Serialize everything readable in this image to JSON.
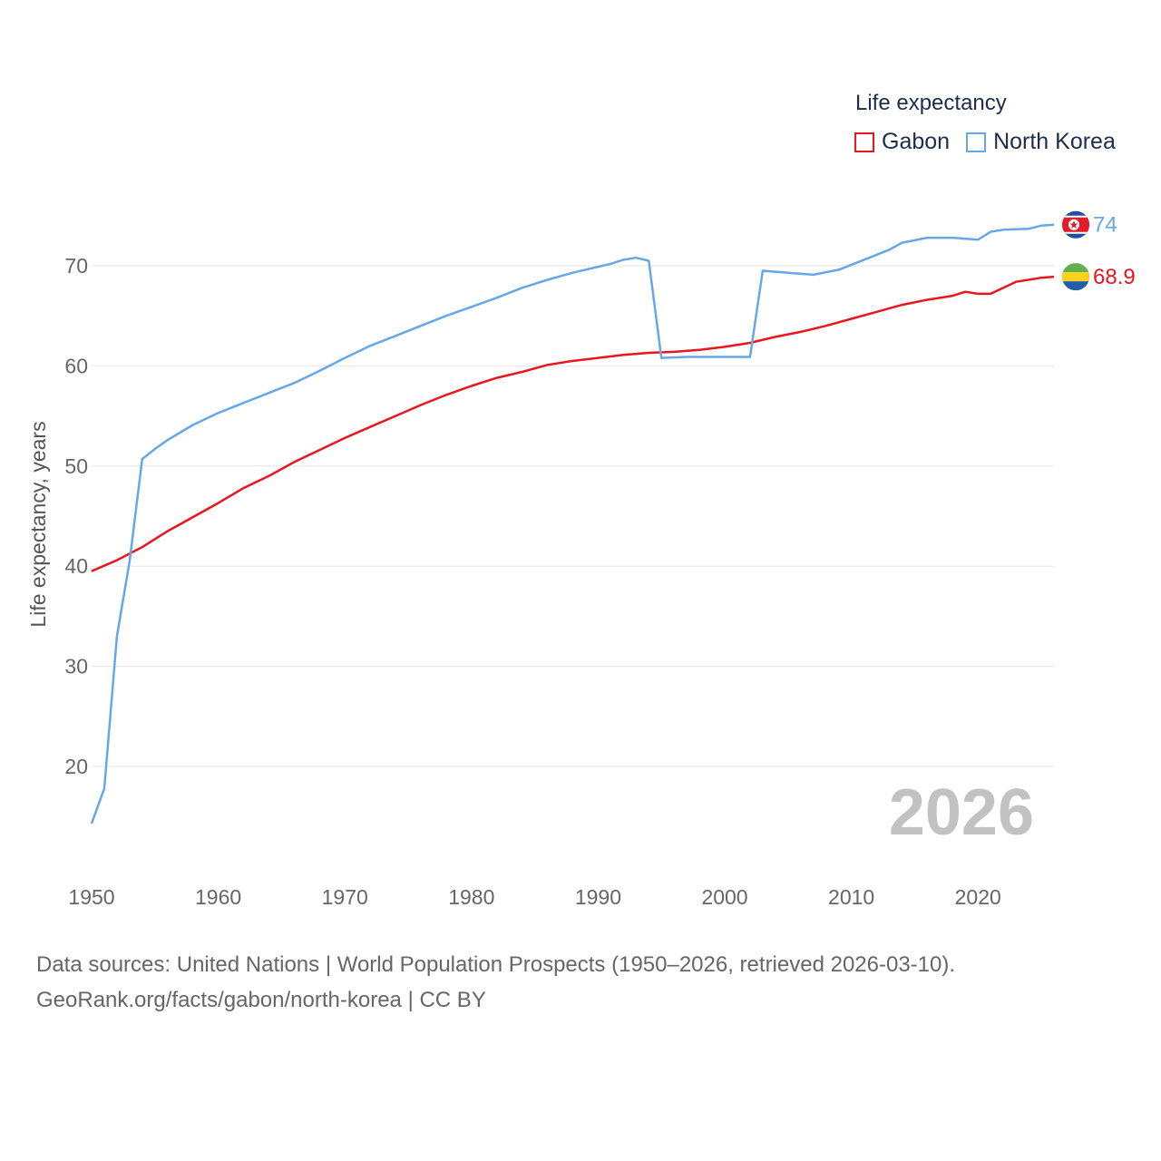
{
  "chart_data": {
    "type": "line",
    "title": "Life expectancy",
    "xlabel": "",
    "ylabel": "Life expectancy, years",
    "xlim": [
      1950,
      2026
    ],
    "ylim": [
      12,
      76
    ],
    "yticks": [
      20,
      30,
      40,
      50,
      60,
      70
    ],
    "xticks": [
      1950,
      1960,
      1970,
      1980,
      1990,
      2000,
      2010,
      2020
    ],
    "year_watermark": "2026",
    "grid": true,
    "legend_position": "top-right",
    "series": [
      {
        "name": "Gabon",
        "color": "#e8161e",
        "end_label": "68.9",
        "flag": "gabon-flag",
        "points": [
          [
            1950,
            39.5
          ],
          [
            1952,
            40.6
          ],
          [
            1954,
            41.9
          ],
          [
            1956,
            43.5
          ],
          [
            1958,
            44.9
          ],
          [
            1960,
            46.3
          ],
          [
            1962,
            47.8
          ],
          [
            1964,
            49.0
          ],
          [
            1966,
            50.4
          ],
          [
            1968,
            51.6
          ],
          [
            1970,
            52.8
          ],
          [
            1972,
            53.9
          ],
          [
            1974,
            55.0
          ],
          [
            1976,
            56.1
          ],
          [
            1978,
            57.1
          ],
          [
            1980,
            58.0
          ],
          [
            1982,
            58.8
          ],
          [
            1984,
            59.4
          ],
          [
            1986,
            60.1
          ],
          [
            1988,
            60.5
          ],
          [
            1990,
            60.8
          ],
          [
            1992,
            61.1
          ],
          [
            1994,
            61.3
          ],
          [
            1996,
            61.4
          ],
          [
            1998,
            61.6
          ],
          [
            2000,
            61.9
          ],
          [
            2002,
            62.3
          ],
          [
            2004,
            62.9
          ],
          [
            2006,
            63.4
          ],
          [
            2008,
            64.0
          ],
          [
            2010,
            64.7
          ],
          [
            2012,
            65.4
          ],
          [
            2014,
            66.1
          ],
          [
            2016,
            66.6
          ],
          [
            2018,
            67.0
          ],
          [
            2019,
            67.4
          ],
          [
            2020,
            67.2
          ],
          [
            2021,
            67.2
          ],
          [
            2023,
            68.4
          ],
          [
            2025,
            68.8
          ],
          [
            2026,
            68.9
          ]
        ]
      },
      {
        "name": "North Korea",
        "color": "#66a8e6",
        "end_label": "74",
        "flag": "north-korea-flag",
        "points": [
          [
            1950,
            14.3
          ],
          [
            1951,
            17.8
          ],
          [
            1952,
            33.0
          ],
          [
            1953,
            40.5
          ],
          [
            1954,
            50.7
          ],
          [
            1955,
            51.7
          ],
          [
            1956,
            52.6
          ],
          [
            1958,
            54.1
          ],
          [
            1960,
            55.3
          ],
          [
            1962,
            56.3
          ],
          [
            1964,
            57.3
          ],
          [
            1966,
            58.3
          ],
          [
            1968,
            59.5
          ],
          [
            1970,
            60.8
          ],
          [
            1972,
            62.0
          ],
          [
            1974,
            63.0
          ],
          [
            1976,
            64.0
          ],
          [
            1978,
            65.0
          ],
          [
            1980,
            65.9
          ],
          [
            1982,
            66.8
          ],
          [
            1984,
            67.8
          ],
          [
            1986,
            68.6
          ],
          [
            1988,
            69.3
          ],
          [
            1990,
            69.9
          ],
          [
            1991,
            70.2
          ],
          [
            1992,
            70.6
          ],
          [
            1993,
            70.8
          ],
          [
            1994,
            70.5
          ],
          [
            1995,
            60.8
          ],
          [
            1997,
            60.9
          ],
          [
            2000,
            60.9
          ],
          [
            2002,
            60.9
          ],
          [
            2003,
            69.5
          ],
          [
            2005,
            69.3
          ],
          [
            2007,
            69.1
          ],
          [
            2009,
            69.6
          ],
          [
            2011,
            70.6
          ],
          [
            2013,
            71.6
          ],
          [
            2014,
            72.3
          ],
          [
            2016,
            72.8
          ],
          [
            2018,
            72.8
          ],
          [
            2020,
            72.6
          ],
          [
            2021,
            73.4
          ],
          [
            2022,
            73.6
          ],
          [
            2024,
            73.7
          ],
          [
            2025,
            74.0
          ],
          [
            2026,
            74.1
          ]
        ]
      }
    ]
  },
  "legend": {
    "title": "Life expectancy",
    "items": [
      "Gabon",
      "North Korea"
    ]
  },
  "footer": {
    "line1": "Data sources: United Nations | World Population Prospects (1950–2026, retrieved 2026-03-10).",
    "line2": "GeoRank.org/facts/gabon/north-korea | CC BY"
  }
}
